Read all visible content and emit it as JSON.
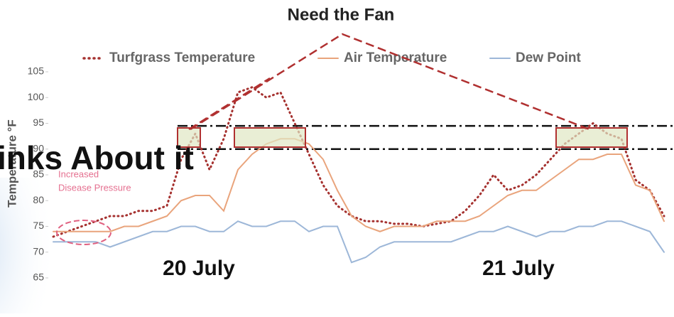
{
  "chart_data": {
    "type": "line",
    "title": "Need the Fan",
    "y_label": "Temperature °F",
    "annotations": [
      "20 July",
      "21 July",
      "Increased",
      "Disease Pressure",
      "inks About it"
    ],
    "categories": [
      null,
      null,
      null,
      null,
      null,
      null,
      null,
      null,
      null,
      null,
      null,
      null,
      null,
      null,
      null,
      null,
      null,
      null,
      null,
      null,
      null,
      null,
      null,
      null,
      null,
      null,
      null,
      null,
      null,
      null,
      null,
      null,
      null,
      null,
      null,
      null,
      null,
      null,
      null,
      null,
      null,
      null,
      null,
      null
    ],
    "series": [
      {
        "name": "Turfgrass Temperature",
        "color": "#a5312f",
        "values": [
          73,
          74,
          75,
          76,
          77,
          77,
          78,
          78,
          79,
          88,
          93,
          86,
          92,
          101,
          102,
          100,
          101,
          95,
          89,
          83,
          79,
          77,
          76,
          76,
          75.5,
          75.5,
          75,
          75.5,
          76,
          78,
          81,
          85,
          82,
          83,
          85,
          88,
          91,
          93,
          95,
          93,
          92,
          84,
          82,
          77
        ]
      },
      {
        "name": "Air Temperature",
        "color": "#e9a47c",
        "values": [
          74,
          74,
          74,
          74,
          74,
          75,
          75,
          76,
          77,
          80,
          81,
          81,
          78,
          86,
          89,
          91,
          92,
          92,
          91,
          88,
          82,
          77,
          75,
          74,
          75,
          75,
          75,
          76,
          76,
          76,
          77,
          79,
          81,
          82,
          82,
          84,
          86,
          88,
          88,
          89,
          89,
          83,
          82,
          76
        ]
      },
      {
        "name": "Dew Point",
        "color": "#9db7d8",
        "values": [
          72,
          72,
          72,
          72,
          71,
          72,
          73,
          74,
          74,
          75,
          75,
          74,
          74,
          76,
          75,
          75,
          76,
          76,
          74,
          75,
          75,
          68,
          69,
          71,
          72,
          72,
          72,
          72,
          72,
          73,
          74,
          74,
          75,
          74,
          73,
          74,
          74,
          75,
          75,
          76,
          76,
          75,
          74,
          70
        ]
      }
    ],
    "reference_lines": [
      94.5,
      90
    ],
    "ylim": [
      65,
      105
    ],
    "yticks": [
      65,
      70,
      75,
      80,
      85,
      90,
      95,
      100,
      105
    ],
    "legend": "top"
  }
}
